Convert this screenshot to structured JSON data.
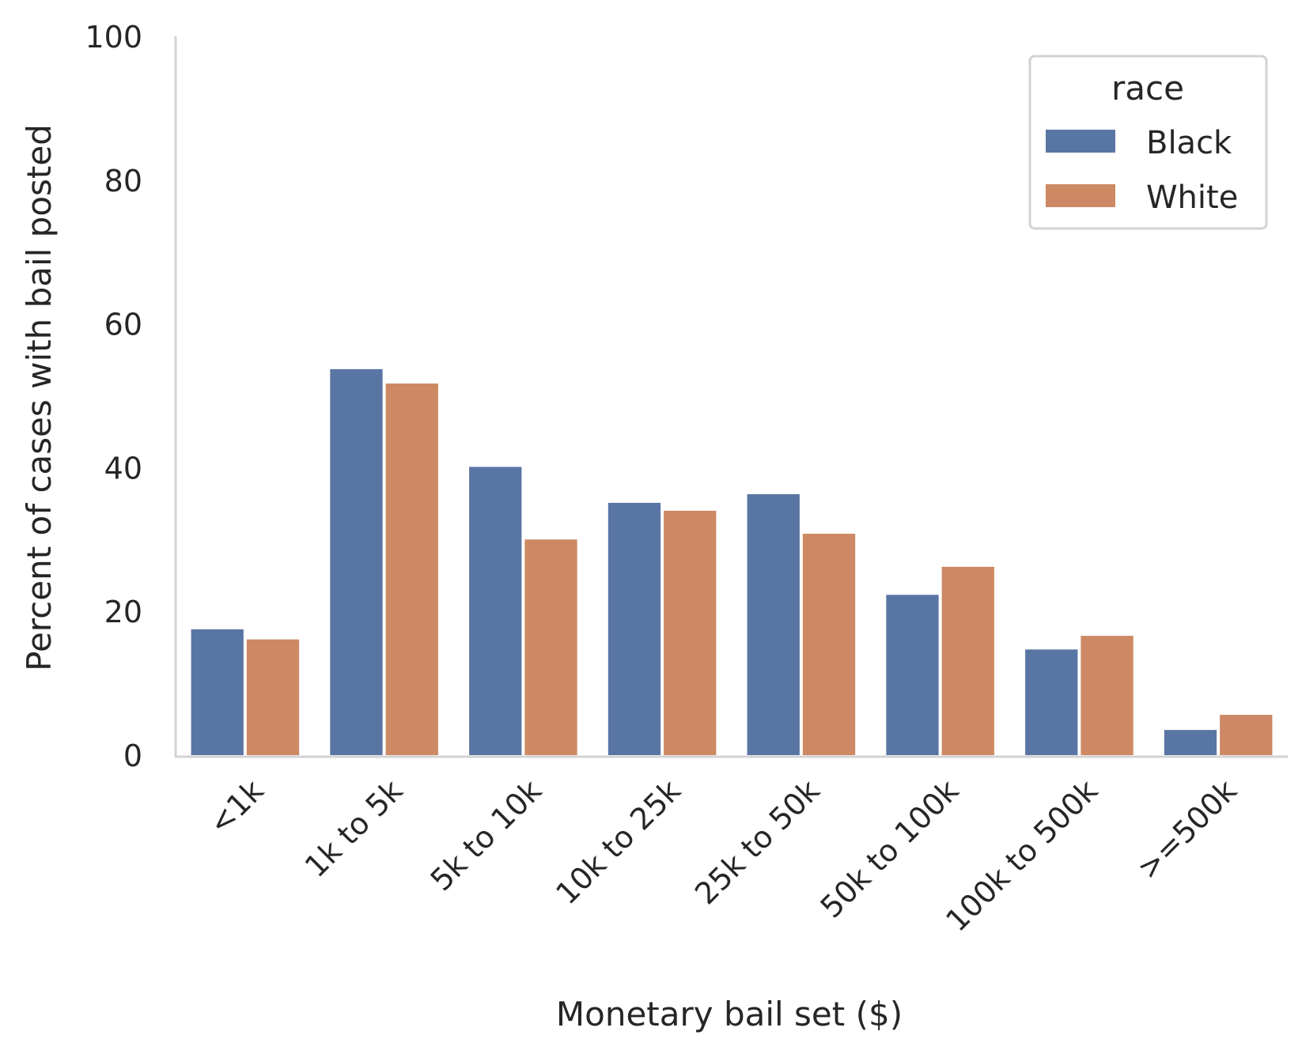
{
  "chart_data": {
    "type": "bar",
    "title": "",
    "xlabel": "Monetary bail set ($)",
    "ylabel": "Percent of cases with bail posted",
    "ylim": [
      0,
      100
    ],
    "yticks": [
      "0",
      "20",
      "40",
      "60",
      "80",
      "100"
    ],
    "categories": [
      "<1k",
      "1k to 5k",
      "5k to 10k",
      "10k to 25k",
      "25k to 50k",
      "50k to 100k",
      "100k to 500k",
      ">=500k"
    ],
    "series": [
      {
        "name": "Black",
        "color": "#5975a4",
        "values": [
          17.5,
          53.7,
          40.1,
          35.1,
          36.3,
          22.3,
          14.7,
          3.5
        ]
      },
      {
        "name": "White",
        "color": "#cc8963",
        "values": [
          16.1,
          51.7,
          30.0,
          34.0,
          30.8,
          26.2,
          16.6,
          5.6
        ]
      }
    ],
    "grid": false,
    "legend": {
      "title": "race",
      "placement": "top-right"
    }
  }
}
